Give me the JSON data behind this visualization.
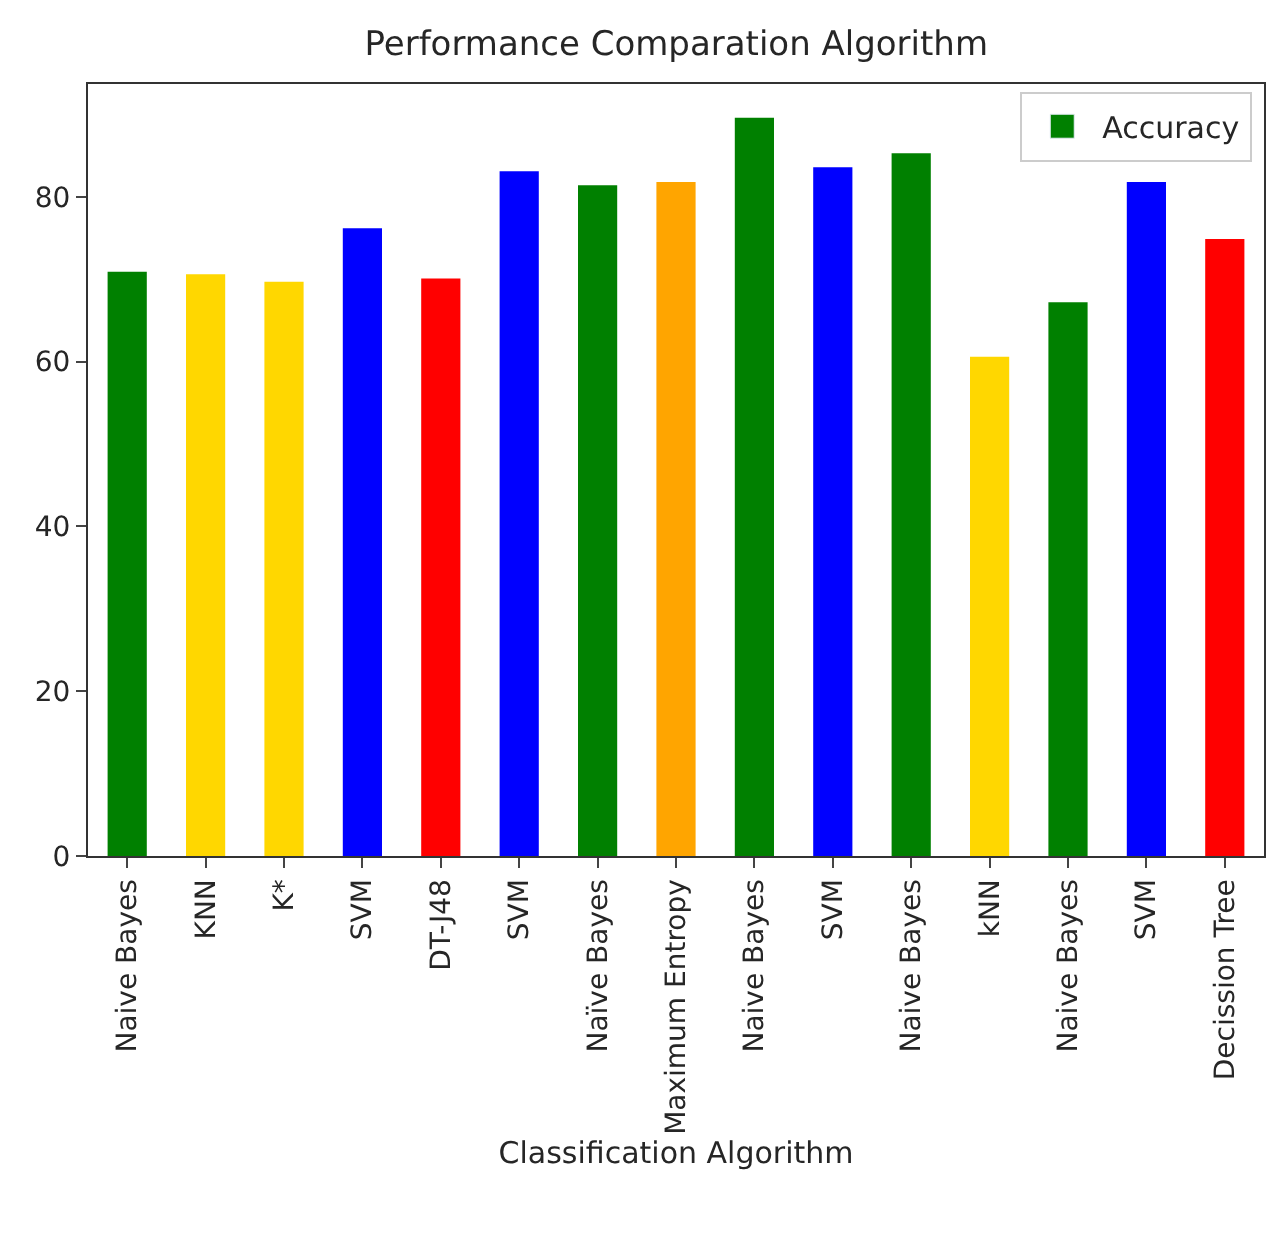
{
  "chart_data": {
    "type": "bar",
    "title": "Performance Comparation Algorithm",
    "xlabel": "Classification Algorithm",
    "categories": [
      "Naive Bayes",
      "KNN",
      "K*",
      "SVM",
      "DT-J48",
      "SVM",
      "Naïve Bayes",
      "Maximum Entropy",
      "Naive Bayes",
      "SVM",
      "Naive Bayes",
      "kNN",
      "Naive Bayes",
      "SVM",
      "Decission Tree"
    ],
    "series": [
      {
        "name": "Accuracy",
        "color": "#008000",
        "colors": [
          "#008000",
          "#ffd700",
          "#ffd700",
          "#0000ff",
          "#ff0000",
          "#0000ff",
          "#008000",
          "#ffa500",
          "#008000",
          "#0000ff",
          "#008000",
          "#ffd700",
          "#008000",
          "#0000ff",
          "#ff0000"
        ],
        "values": [
          70.9,
          70.6,
          69.7,
          76.2,
          70.1,
          83.1,
          81.4,
          81.8,
          89.6,
          83.6,
          85.3,
          60.6,
          67.2,
          81.8,
          74.9
        ]
      }
    ],
    "ylim": [
      0,
      93.7
    ],
    "yticks": [
      0,
      20,
      40,
      60,
      80
    ],
    "legend": "top right"
  }
}
